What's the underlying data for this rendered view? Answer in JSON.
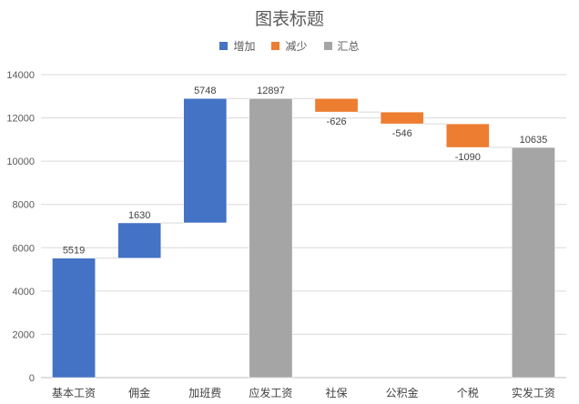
{
  "chart_data": {
    "type": "bar",
    "subtype": "waterfall",
    "title": "图表标题",
    "xlabel": "",
    "ylabel": "",
    "ylim": [
      0,
      14000
    ],
    "yticks": [
      0,
      2000,
      4000,
      6000,
      8000,
      10000,
      12000,
      14000
    ],
    "grid": true,
    "legend_position": "top",
    "legend": [
      {
        "name": "增加",
        "color": "#4472C4"
      },
      {
        "name": "减少",
        "color": "#ED7D31"
      },
      {
        "name": "汇总",
        "color": "#A5A5A5"
      }
    ],
    "categories": [
      "基本工资",
      "佣金",
      "加班费",
      "应发工资",
      "社保",
      "公积金",
      "个税",
      "实发工资"
    ],
    "bars": [
      {
        "category": "基本工资",
        "start": 0,
        "end": 5519,
        "label": "5519",
        "kind": "增加"
      },
      {
        "category": "佣金",
        "start": 5519,
        "end": 7149,
        "label": "1630",
        "kind": "增加"
      },
      {
        "category": "加班费",
        "start": 7149,
        "end": 12897,
        "label": "5748",
        "kind": "增加"
      },
      {
        "category": "应发工资",
        "start": 0,
        "end": 12897,
        "label": "12897",
        "kind": "汇总"
      },
      {
        "category": "社保",
        "start": 12897,
        "end": 12271,
        "label": "-626",
        "kind": "减少"
      },
      {
        "category": "公积金",
        "start": 12271,
        "end": 11725,
        "label": "-546",
        "kind": "减少"
      },
      {
        "category": "个税",
        "start": 11725,
        "end": 10635,
        "label": "-1090",
        "kind": "减少"
      },
      {
        "category": "实发工资",
        "start": 0,
        "end": 10635,
        "label": "10635",
        "kind": "汇总"
      }
    ]
  }
}
